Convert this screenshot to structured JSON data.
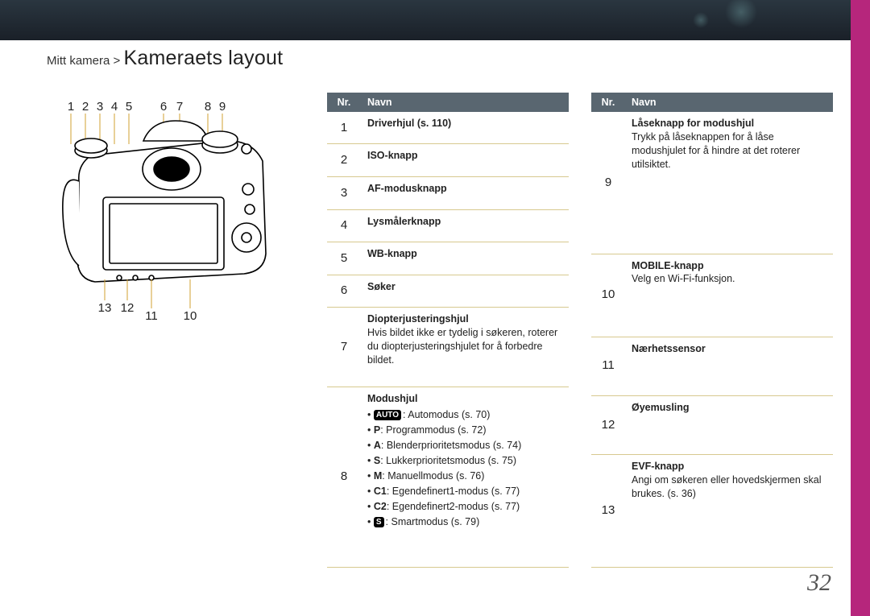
{
  "breadcrumb": {
    "section": "Mitt kamera",
    "sep": ">",
    "title": "Kameraets layout"
  },
  "pageNumber": "32",
  "diagram": {
    "callouts_top": [
      {
        "n": "1"
      },
      {
        "n": "2"
      },
      {
        "n": "3"
      },
      {
        "n": "4"
      },
      {
        "n": "5"
      },
      {
        "n": "6"
      },
      {
        "n": "7"
      },
      {
        "n": "8"
      },
      {
        "n": "9"
      }
    ],
    "callouts_bot": [
      {
        "n": "13"
      },
      {
        "n": "12"
      },
      {
        "n": "11"
      },
      {
        "n": "10"
      }
    ]
  },
  "table": {
    "head": {
      "nr": "Nr.",
      "name": "Navn"
    },
    "border_color": "#d7c98f",
    "header_bg": "#596670"
  },
  "left": [
    {
      "nr": "1",
      "title": "Driverhjul (s. 110)"
    },
    {
      "nr": "2",
      "title": "ISO-knapp"
    },
    {
      "nr": "3",
      "title": "AF-modusknapp"
    },
    {
      "nr": "4",
      "title": "Lysmålerknapp"
    },
    {
      "nr": "5",
      "title": "WB-knapp"
    },
    {
      "nr": "6",
      "title": "Søker"
    },
    {
      "nr": "7",
      "title": "Diopterjusteringshjul",
      "desc": "Hvis bildet ikke er tydelig i søkeren, roterer du diopterjusteringshjulet for å forbedre bildet."
    },
    {
      "nr": "8",
      "title": "Modushjul",
      "modes": [
        {
          "icon": "AUTO",
          "label": ": Automodus (s. 70)"
        },
        {
          "sym": "P",
          "label": ": Programmodus (s. 72)"
        },
        {
          "sym": "A",
          "label": ": Blenderprioritetsmodus (s. 74)"
        },
        {
          "sym": "S",
          "label": ": Lukkerprioritetsmodus (s. 75)"
        },
        {
          "sym": "M",
          "label": ": Manuellmodus (s. 76)"
        },
        {
          "sym": "C1",
          "label": ": Egendefinert1-modus (s. 77)"
        },
        {
          "sym": "C2",
          "label": ": Egendefinert2-modus (s. 77)"
        },
        {
          "icon": "S",
          "label": ": Smartmodus (s. 79)"
        }
      ]
    }
  ],
  "right": [
    {
      "nr": "9",
      "title": "Låseknapp for modushjul",
      "desc": "Trykk på låseknappen for å låse modushjulet for å hindre at det roterer utilsiktet."
    },
    {
      "nr": "10",
      "title": "MOBILE-knapp",
      "desc": "Velg en Wi-Fi-funksjon."
    },
    {
      "nr": "11",
      "title": "Nærhetssensor"
    },
    {
      "nr": "12",
      "title": "Øyemusling"
    },
    {
      "nr": "13",
      "title": "EVF-knapp",
      "desc": "Angi om søkeren eller hovedskjermen skal brukes. (s. 36)"
    }
  ]
}
